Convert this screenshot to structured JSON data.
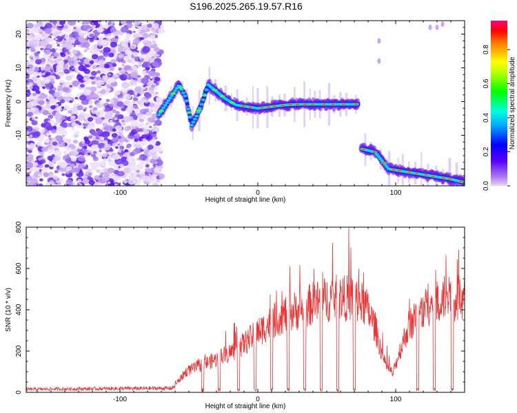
{
  "chart_data": [
    {
      "type": "heatmap",
      "title": "S196.2025.265.19.57.R16",
      "xlabel": "Height of straight line (km)",
      "ylabel": "Frequency (Hz)",
      "xlim": [
        -168,
        150
      ],
      "ylim": [
        -25,
        24
      ],
      "xticks": [
        -100,
        0,
        100
      ],
      "yticks": [
        -20,
        -10,
        0,
        10,
        20
      ],
      "colorbar": {
        "label": "Normalized spectral amplitude",
        "range": [
          0,
          0.97
        ],
        "ticks": [
          0,
          0.2,
          0.4,
          0.6,
          0.8
        ]
      },
      "noise_region": [
        -168,
        -70
      ],
      "ridge": [
        {
          "x": -72,
          "y": -4
        },
        {
          "x": -67,
          "y": -1
        },
        {
          "x": -62,
          "y": 2
        },
        {
          "x": -57,
          "y": 5
        },
        {
          "x": -52,
          "y": 1
        },
        {
          "x": -48,
          "y": -7
        },
        {
          "x": -44,
          "y": -4
        },
        {
          "x": -40,
          "y": 0
        },
        {
          "x": -36,
          "y": 5
        },
        {
          "x": -30,
          "y": 3
        },
        {
          "x": -24,
          "y": 1
        },
        {
          "x": -16,
          "y": -1
        },
        {
          "x": -8,
          "y": -1.5
        },
        {
          "x": 0,
          "y": -2
        },
        {
          "x": 10,
          "y": -1.5
        },
        {
          "x": 20,
          "y": -1
        },
        {
          "x": 30,
          "y": -0.8
        },
        {
          "x": 40,
          "y": -0.8
        },
        {
          "x": 50,
          "y": -0.8
        },
        {
          "x": 60,
          "y": -0.8
        },
        {
          "x": 73,
          "y": -0.8
        },
        {
          "x": 75,
          "y": -14
        },
        {
          "x": 85,
          "y": -15
        },
        {
          "x": 95,
          "y": -20
        },
        {
          "x": 110,
          "y": -21
        },
        {
          "x": 125,
          "y": -22
        },
        {
          "x": 140,
          "y": -23
        },
        {
          "x": 150,
          "y": -24
        }
      ]
    },
    {
      "type": "line",
      "title": "",
      "xlabel": "Height of straight line (km)",
      "ylabel": "SNR (10 * v/v)",
      "xlim": [
        -168,
        150
      ],
      "ylim": [
        0,
        800
      ],
      "xticks": [
        -100,
        0,
        100
      ],
      "yticks": [
        0,
        200,
        400,
        600,
        800
      ],
      "color": "#f03232",
      "series_envelope": [
        {
          "x": -168,
          "y": 15
        },
        {
          "x": -62,
          "y": 20
        },
        {
          "x": -52,
          "y": 100
        },
        {
          "x": -42,
          "y": 130
        },
        {
          "x": -30,
          "y": 160
        },
        {
          "x": -15,
          "y": 210
        },
        {
          "x": 0,
          "y": 290
        },
        {
          "x": 10,
          "y": 340
        },
        {
          "x": 20,
          "y": 380
        },
        {
          "x": 30,
          "y": 400
        },
        {
          "x": 40,
          "y": 430
        },
        {
          "x": 50,
          "y": 450
        },
        {
          "x": 60,
          "y": 460
        },
        {
          "x": 70,
          "y": 450
        },
        {
          "x": 78,
          "y": 420
        },
        {
          "x": 85,
          "y": 320
        },
        {
          "x": 92,
          "y": 140
        },
        {
          "x": 98,
          "y": 90
        },
        {
          "x": 103,
          "y": 200
        },
        {
          "x": 110,
          "y": 330
        },
        {
          "x": 120,
          "y": 400
        },
        {
          "x": 130,
          "y": 460
        },
        {
          "x": 140,
          "y": 450
        },
        {
          "x": 150,
          "y": 460
        }
      ],
      "dropouts": [
        -40,
        -28,
        -14,
        -2,
        10,
        22,
        34,
        46,
        58,
        70,
        116,
        128,
        141
      ]
    }
  ]
}
